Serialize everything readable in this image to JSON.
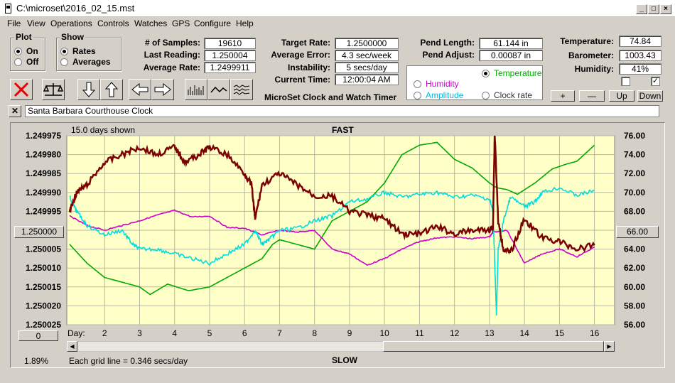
{
  "window": {
    "title": "C:\\microset\\2016_02_15.mst"
  },
  "menu": [
    "File",
    "View",
    "Operations",
    "Controls",
    "Watches",
    "GPS",
    "Configure",
    "Help"
  ],
  "plot_group": {
    "label": "Plot",
    "on": "On",
    "off": "Off"
  },
  "show_group": {
    "label": "Show",
    "rates": "Rates",
    "averages": "Averages"
  },
  "stats": {
    "samples_label": "# of Samples:",
    "samples": "19610",
    "last_label": "Last Reading:",
    "last": "1.250004",
    "avg_rate_label": "Average Rate:",
    "avg_rate": "1.2499911",
    "target_label": "Target Rate:",
    "target": "1.2500000",
    "avg_err_label": "Average Error:",
    "avg_err": "4.3 sec/week",
    "instab_label": "Instability:",
    "instab": "5 secs/day",
    "time_label": "Current Time:",
    "time": "12:00:04 AM",
    "pend_len_label": "Pend Length:",
    "pend_len": "61.144 in",
    "pend_adj_label": "Pend Adjust:",
    "pend_adj": "0.00087 in",
    "temp_label": "Temperature:",
    "temp": "74.84",
    "baro_label": "Barometer:",
    "baro": "1003.43",
    "hum_label": "Humidity:",
    "hum": "41%"
  },
  "app_caption": "MicroSet Clock and Watch Timer",
  "channels": {
    "temperature": "Temperature",
    "humidity": "Humidity",
    "amplitude": "Amplitude",
    "clock_rate": "Clock rate"
  },
  "scale_buttons": {
    "plus": "+",
    "minus": "—",
    "up": "Up",
    "down": "Down"
  },
  "clock_name": "Santa Barbara Courthouse Clock",
  "left_mid_button": "1.250000",
  "right_mid_button": "66.00",
  "zero_button": "0",
  "footer": {
    "percent": "1.89%",
    "grid_note": "Each grid line = 0.346 secs/day",
    "slow": "SLOW"
  },
  "colors": {
    "rate": "#7b0000",
    "temperature": "#00aa00",
    "humidity": "#cc00cc",
    "amplitude": "#00dddd",
    "plot_bg": "#ffffc8"
  },
  "chart_data": {
    "type": "line",
    "title": "FAST",
    "subtitle": "15.0 days shown",
    "xlabel": "Day:",
    "x_ticks": [
      "2",
      "3",
      "4",
      "5",
      "6",
      "7",
      "8",
      "9",
      "10",
      "11",
      "12",
      "13",
      "14",
      "15",
      "16"
    ],
    "left_ticks": [
      "1.249975",
      "1.249980",
      "1.249985",
      "1.249990",
      "1.249995",
      "",
      "1.250005",
      "1.250010",
      "1.250015",
      "1.250020",
      "1.250025"
    ],
    "right_ticks": [
      "76.00",
      "74.00",
      "72.00",
      "70.00",
      "68.00",
      "",
      "64.00",
      "62.00",
      "60.00",
      "58.00",
      "56.00"
    ],
    "xlim": [
      1,
      16
    ],
    "ylim_left": [
      1.250025,
      1.249975
    ],
    "ylim_right": [
      56,
      76
    ],
    "grid": true,
    "series": [
      {
        "key": "temperature",
        "x": [
          1,
          1.5,
          2,
          2.5,
          3,
          3.3,
          3.8,
          4.4,
          5,
          5.5,
          6,
          6.5,
          6.8,
          7,
          7.5,
          8,
          8.5,
          9,
          9.5,
          10,
          10.5,
          11,
          11.5,
          12,
          12.5,
          13,
          13.2,
          13.5,
          13.8,
          14.3,
          14.8,
          15.2,
          15.5,
          16
        ],
        "y": [
          64.5,
          62.5,
          61,
          60.5,
          60,
          59.2,
          60.3,
          59.6,
          60,
          61,
          62,
          63,
          64.5,
          65,
          64.5,
          64,
          67,
          68,
          69,
          71,
          74,
          75,
          75.3,
          73.5,
          72.6,
          71,
          70.5,
          70.3,
          69.8,
          71,
          72.5,
          73,
          73.3,
          75
        ]
      },
      {
        "key": "humidity",
        "x": [
          1,
          1.5,
          2,
          2.5,
          3,
          3.5,
          4,
          4.5,
          5,
          5.5,
          6,
          6.5,
          7,
          7.5,
          8,
          8.5,
          9,
          9.5,
          10,
          10.5,
          11,
          11.5,
          12,
          12.5,
          13,
          13.1,
          13.5,
          14,
          14.5,
          15,
          15.5,
          16
        ],
        "y": [
          67.5,
          66.5,
          66,
          66.5,
          67,
          67.6,
          68.1,
          67.4,
          67.5,
          66.3,
          66.2,
          65.5,
          66,
          65.8,
          66,
          64,
          63.5,
          62.3,
          63,
          64,
          64.8,
          65.2,
          65.3,
          65.1,
          65.3,
          65.8,
          66,
          62.5,
          63.5,
          64,
          63.2,
          64.2
        ]
      },
      {
        "key": "amplitude",
        "x": [
          1,
          1.2,
          1.5,
          2,
          2.5,
          2.8,
          3,
          3.5,
          4,
          4.5,
          5,
          5.5,
          6,
          6.3,
          6.5,
          6.7,
          7,
          7.5,
          8,
          8.5,
          9,
          9.5,
          10,
          10.5,
          11,
          11.5,
          12,
          12.5,
          13,
          13.1,
          13.2,
          13.25,
          13.4,
          13.6,
          14,
          14.3,
          14.5,
          15,
          15.5,
          16
        ],
        "y": [
          69.5,
          68,
          66.5,
          65.5,
          66,
          64.5,
          64,
          64,
          63.5,
          63,
          62.5,
          63.5,
          64.5,
          66,
          64.5,
          65,
          66,
          66.2,
          67,
          67.5,
          69,
          69.3,
          70,
          69.5,
          69.8,
          70,
          69.5,
          69.7,
          69.3,
          68,
          57,
          64,
          67,
          69.5,
          68.5,
          69,
          70,
          70.5,
          69.7,
          70.2
        ]
      },
      {
        "key": "rate",
        "x": [
          1,
          1.2,
          1.5,
          2,
          2.5,
          3,
          3.5,
          4,
          4.3,
          4.7,
          5,
          5.5,
          6,
          6.2,
          6.3,
          6.5,
          7,
          7.5,
          8,
          8.5,
          9,
          9.5,
          10,
          10.5,
          11,
          11.5,
          12,
          12.5,
          13,
          13.1,
          13.15,
          13.25,
          13.4,
          13.6,
          14,
          14.5,
          15,
          15.5,
          16
        ],
        "y": [
          1.249995,
          1.24999,
          1.249988,
          1.249982,
          1.24998,
          1.249978,
          1.24998,
          1.249978,
          1.249982,
          1.24998,
          1.249978,
          1.24998,
          1.249985,
          1.249988,
          1.249997,
          1.249988,
          1.249985,
          1.249988,
          1.249991,
          1.249991,
          1.249995,
          1.249996,
          1.249997,
          1.250001,
          1.250001,
          1.249999,
          1.250001,
          1.25,
          1.25,
          1.249999,
          1.249974,
          1.249998,
          1.250005,
          1.250006,
          1.249997,
          1.250002,
          1.250003,
          1.250005,
          1.250004
        ]
      }
    ]
  }
}
